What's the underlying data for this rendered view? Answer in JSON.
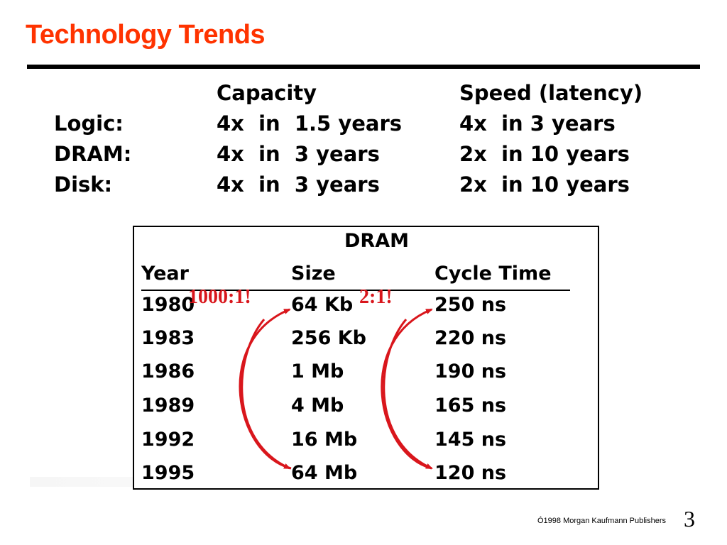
{
  "title": "Technology Trends",
  "trends": {
    "headers": [
      "",
      "Capacity",
      "Speed (latency)"
    ],
    "rows": [
      [
        "Logic:",
        "4x  in  1.5 years",
        "4x  in 3 years"
      ],
      [
        "DRAM:",
        "4x  in  3 years",
        "2x  in 10 years"
      ],
      [
        "Disk:",
        "4x  in  3 years",
        "2x  in 10 years"
      ]
    ]
  },
  "dram": {
    "title": "DRAM",
    "headers": [
      "Year",
      "Size",
      "Cycle Time"
    ],
    "rows": [
      [
        "1980",
        "64 Kb",
        "250 ns"
      ],
      [
        "1983",
        "256 Kb",
        "220 ns"
      ],
      [
        "1986",
        "1 Mb",
        "190 ns"
      ],
      [
        "1989",
        "4 Mb",
        "165 ns"
      ],
      [
        "1992",
        "16 Mb",
        "145 ns"
      ],
      [
        "1995",
        "64 Mb",
        "120 ns"
      ]
    ],
    "annotations": [
      "1000:1!",
      "2:1!"
    ]
  },
  "colors": {
    "title": "#ff3300",
    "annotation": "#d9161c"
  },
  "footer": "Ó1998 Morgan Kaufmann Publishers",
  "page_number": "3"
}
